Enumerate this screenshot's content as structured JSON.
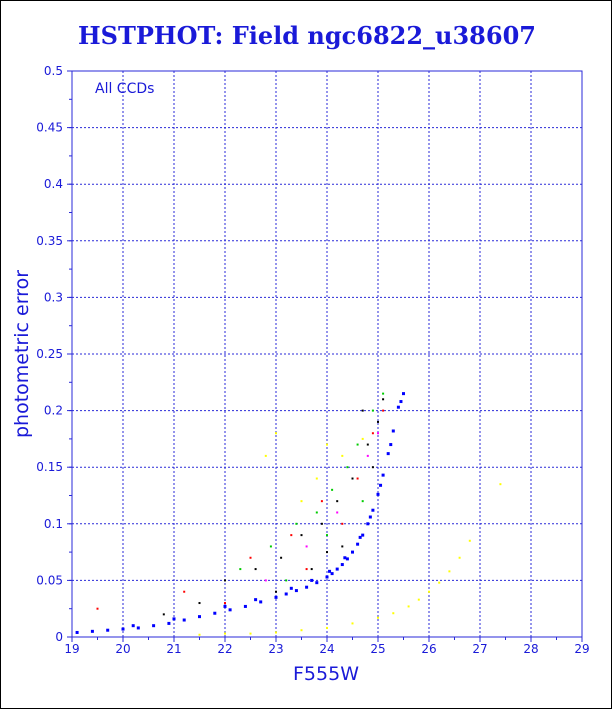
{
  "chart_data": {
    "type": "scatter",
    "title": "HSTPHOT: Field ngc6822_u38607",
    "xlabel": "F555W",
    "ylabel": "photometric error",
    "xlim": [
      19,
      29
    ],
    "ylim": [
      0,
      0.5
    ],
    "x_ticks": [
      "19",
      "20",
      "21",
      "22",
      "23",
      "24",
      "25",
      "26",
      "27",
      "28",
      "29"
    ],
    "y_ticks": [
      "0",
      "0.05",
      "0.1",
      "0.15",
      "0.2",
      "0.25",
      "0.3",
      "0.35",
      "0.4",
      "0.45",
      "0.5"
    ],
    "annotation": "All CCDs",
    "grid": true,
    "series": [
      {
        "color": "#0000ff",
        "marker_size": 3,
        "points": [
          [
            19.1,
            0.004
          ],
          [
            19.4,
            0.005
          ],
          [
            19.7,
            0.006
          ],
          [
            20.0,
            0.007
          ],
          [
            20.3,
            0.008
          ],
          [
            20.6,
            0.01
          ],
          [
            20.9,
            0.012
          ],
          [
            21.2,
            0.015
          ],
          [
            21.5,
            0.018
          ],
          [
            21.8,
            0.021
          ],
          [
            22.1,
            0.024
          ],
          [
            22.4,
            0.027
          ],
          [
            22.7,
            0.031
          ],
          [
            23.0,
            0.035
          ],
          [
            23.2,
            0.038
          ],
          [
            23.4,
            0.041
          ],
          [
            23.6,
            0.044
          ],
          [
            23.8,
            0.048
          ],
          [
            24.0,
            0.053
          ],
          [
            24.1,
            0.056
          ],
          [
            24.2,
            0.06
          ],
          [
            24.3,
            0.064
          ],
          [
            24.4,
            0.069
          ],
          [
            24.5,
            0.075
          ],
          [
            24.6,
            0.082
          ],
          [
            24.7,
            0.09
          ],
          [
            24.8,
            0.1
          ],
          [
            24.9,
            0.112
          ],
          [
            25.0,
            0.126
          ],
          [
            25.1,
            0.143
          ],
          [
            25.2,
            0.162
          ],
          [
            25.3,
            0.182
          ],
          [
            25.4,
            0.203
          ],
          [
            25.5,
            0.215
          ],
          [
            23.3,
            0.043
          ],
          [
            23.7,
            0.05
          ],
          [
            24.05,
            0.058
          ],
          [
            24.35,
            0.07
          ],
          [
            24.65,
            0.088
          ],
          [
            24.85,
            0.106
          ],
          [
            25.05,
            0.134
          ],
          [
            25.25,
            0.17
          ],
          [
            25.45,
            0.208
          ],
          [
            22.0,
            0.027
          ],
          [
            22.6,
            0.033
          ],
          [
            21.0,
            0.016
          ],
          [
            20.2,
            0.01
          ]
        ]
      },
      {
        "color": "#000000",
        "marker_size": 2,
        "points": [
          [
            22.0,
            0.05
          ],
          [
            22.6,
            0.06
          ],
          [
            23.1,
            0.07
          ],
          [
            23.5,
            0.09
          ],
          [
            23.9,
            0.1
          ],
          [
            24.2,
            0.12
          ],
          [
            24.5,
            0.14
          ],
          [
            24.8,
            0.17
          ],
          [
            25.0,
            0.19
          ],
          [
            25.1,
            0.21
          ],
          [
            24.7,
            0.2
          ],
          [
            23.0,
            0.04
          ],
          [
            21.5,
            0.03
          ],
          [
            20.8,
            0.02
          ],
          [
            24.3,
            0.08
          ],
          [
            23.7,
            0.06
          ],
          [
            24.9,
            0.15
          ],
          [
            24.0,
            0.075
          ]
        ]
      },
      {
        "color": "#00cc00",
        "marker_size": 2,
        "points": [
          [
            22.3,
            0.06
          ],
          [
            22.9,
            0.08
          ],
          [
            23.4,
            0.1
          ],
          [
            23.8,
            0.11
          ],
          [
            24.1,
            0.13
          ],
          [
            24.4,
            0.15
          ],
          [
            24.6,
            0.17
          ],
          [
            24.9,
            0.2
          ],
          [
            25.1,
            0.215
          ],
          [
            23.2,
            0.05
          ],
          [
            24.0,
            0.09
          ],
          [
            24.7,
            0.12
          ]
        ]
      },
      {
        "color": "#ff0000",
        "marker_size": 2,
        "points": [
          [
            19.5,
            0.025
          ],
          [
            21.2,
            0.04
          ],
          [
            22.5,
            0.07
          ],
          [
            23.3,
            0.09
          ],
          [
            23.9,
            0.12
          ],
          [
            24.3,
            0.1
          ],
          [
            24.6,
            0.14
          ],
          [
            24.9,
            0.18
          ],
          [
            25.1,
            0.2
          ],
          [
            22.0,
            0.03
          ],
          [
            23.6,
            0.06
          ]
        ]
      },
      {
        "color": "#ffff00",
        "marker_size": 2,
        "points": [
          [
            21.5,
            0.002
          ],
          [
            22.0,
            0.003
          ],
          [
            22.5,
            0.003
          ],
          [
            23.0,
            0.004
          ],
          [
            23.5,
            0.006
          ],
          [
            24.0,
            0.008
          ],
          [
            24.5,
            0.012
          ],
          [
            25.0,
            0.017
          ],
          [
            25.3,
            0.021
          ],
          [
            25.6,
            0.027
          ],
          [
            25.8,
            0.033
          ],
          [
            26.0,
            0.04
          ],
          [
            26.2,
            0.048
          ],
          [
            26.4,
            0.058
          ],
          [
            26.6,
            0.07
          ],
          [
            26.8,
            0.085
          ],
          [
            23.0,
            0.18
          ],
          [
            24.0,
            0.17
          ],
          [
            23.5,
            0.12
          ],
          [
            22.8,
            0.16
          ],
          [
            24.3,
            0.16
          ],
          [
            23.8,
            0.14
          ],
          [
            24.7,
            0.175
          ],
          [
            27.4,
            0.135
          ]
        ]
      },
      {
        "color": "#ff00ff",
        "marker_size": 2,
        "points": [
          [
            23.6,
            0.08
          ],
          [
            24.2,
            0.11
          ],
          [
            24.8,
            0.16
          ],
          [
            22.8,
            0.05
          ],
          [
            25.0,
            0.18
          ]
        ]
      }
    ]
  }
}
